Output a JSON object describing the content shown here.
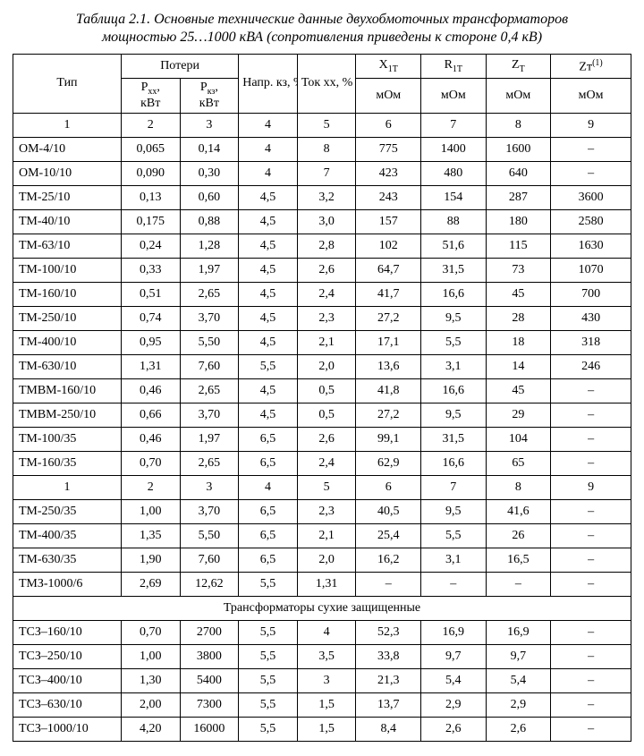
{
  "title_line1": "Таблица 2.1. Основные технические данные двухобмоточных трансформаторов",
  "title_line2": "мощностью 25…1000 кВА (сопротивления приведены к стороне 0,4 кВ)",
  "header": {
    "type": "Тип",
    "losses": "Потери",
    "pxx_label": "Р",
    "pxx_sub": "хх",
    "pkz_label": "Р",
    "pkz_sub": "кз",
    "kvt": "кВт",
    "uk": "Напр. кз, %",
    "ixx": "Ток хх, %",
    "x1t": "X",
    "r1t": "R",
    "zt": "Z",
    "zt1": "Zт",
    "zt1_sup": "(1)",
    "sub_1T": "1T",
    "sub_T": "T",
    "mom": "мОм"
  },
  "colnums": [
    "1",
    "2",
    "3",
    "4",
    "5",
    "6",
    "7",
    "8",
    "9"
  ],
  "rows1": [
    [
      "ОМ-4/10",
      "0,065",
      "0,14",
      "4",
      "8",
      "775",
      "1400",
      "1600",
      "–"
    ],
    [
      "ОМ-10/10",
      "0,090",
      "0,30",
      "4",
      "7",
      "423",
      "480",
      "640",
      "–"
    ],
    [
      "ТМ-25/10",
      "0,13",
      "0,60",
      "4,5",
      "3,2",
      "243",
      "154",
      "287",
      "3600"
    ],
    [
      "ТМ-40/10",
      "0,175",
      "0,88",
      "4,5",
      "3,0",
      "157",
      "88",
      "180",
      "2580"
    ],
    [
      "ТМ-63/10",
      "0,24",
      "1,28",
      "4,5",
      "2,8",
      "102",
      "51,6",
      "115",
      "1630"
    ],
    [
      "ТМ-100/10",
      "0,33",
      "1,97",
      "4,5",
      "2,6",
      "64,7",
      "31,5",
      "73",
      "1070"
    ],
    [
      "ТМ-160/10",
      "0,51",
      "2,65",
      "4,5",
      "2,4",
      "41,7",
      "16,6",
      "45",
      "700"
    ],
    [
      "ТМ-250/10",
      "0,74",
      "3,70",
      "4,5",
      "2,3",
      "27,2",
      "9,5",
      "28",
      "430"
    ],
    [
      "ТМ-400/10",
      "0,95",
      "5,50",
      "4,5",
      "2,1",
      "17,1",
      "5,5",
      "18",
      "318"
    ],
    [
      "ТМ-630/10",
      "1,31",
      "7,60",
      "5,5",
      "2,0",
      "13,6",
      "3,1",
      "14",
      "246"
    ],
    [
      "ТМВМ-160/10",
      "0,46",
      "2,65",
      "4,5",
      "0,5",
      "41,8",
      "16,6",
      "45",
      "–"
    ],
    [
      "ТМВМ-250/10",
      "0,66",
      "3,70",
      "4,5",
      "0,5",
      "27,2",
      "9,5",
      "29",
      "–"
    ],
    [
      "ТМ-100/35",
      "0,46",
      "1,97",
      "6,5",
      "2,6",
      "99,1",
      "31,5",
      "104",
      "–"
    ],
    [
      "ТМ-160/35",
      "0,70",
      "2,65",
      "6,5",
      "2,4",
      "62,9",
      "16,6",
      "65",
      "–"
    ]
  ],
  "rows2": [
    [
      "ТМ-250/35",
      "1,00",
      "3,70",
      "6,5",
      "2,3",
      "40,5",
      "9,5",
      "41,6",
      "–"
    ],
    [
      "ТМ-400/35",
      "1,35",
      "5,50",
      "6,5",
      "2,1",
      "25,4",
      "5,5",
      "26",
      "–"
    ],
    [
      "ТМ-630/35",
      "1,90",
      "7,60",
      "6,5",
      "2,0",
      "16,2",
      "3,1",
      "16,5",
      "–"
    ],
    [
      "ТМЗ-1000/6",
      "2,69",
      "12,62",
      "5,5",
      "1,31",
      "–",
      "–",
      "–",
      "–"
    ]
  ],
  "section": "Трансформаторы сухие защищенные",
  "rows3": [
    [
      "ТСЗ–160/10",
      "0,70",
      "2700",
      "5,5",
      "4",
      "52,3",
      "16,9",
      "16,9",
      "–"
    ],
    [
      "ТСЗ–250/10",
      "1,00",
      "3800",
      "5,5",
      "3,5",
      "33,8",
      "9,7",
      "9,7",
      "–"
    ],
    [
      "ТСЗ–400/10",
      "1,30",
      "5400",
      "5,5",
      "3",
      "21,3",
      "5,4",
      "5,4",
      "–"
    ],
    [
      "ТСЗ–630/10",
      "2,00",
      "7300",
      "5,5",
      "1,5",
      "13,7",
      "2,9",
      "2,9",
      "–"
    ],
    [
      "ТСЗ–1000/10",
      "4,20",
      "16000",
      "5,5",
      "1,5",
      "8,4",
      "2,6",
      "2,6",
      "–"
    ]
  ],
  "col_widths_pct": [
    17.5,
    9.5,
    9.5,
    9.5,
    9.5,
    10.5,
    10.5,
    10.5,
    13.0
  ]
}
